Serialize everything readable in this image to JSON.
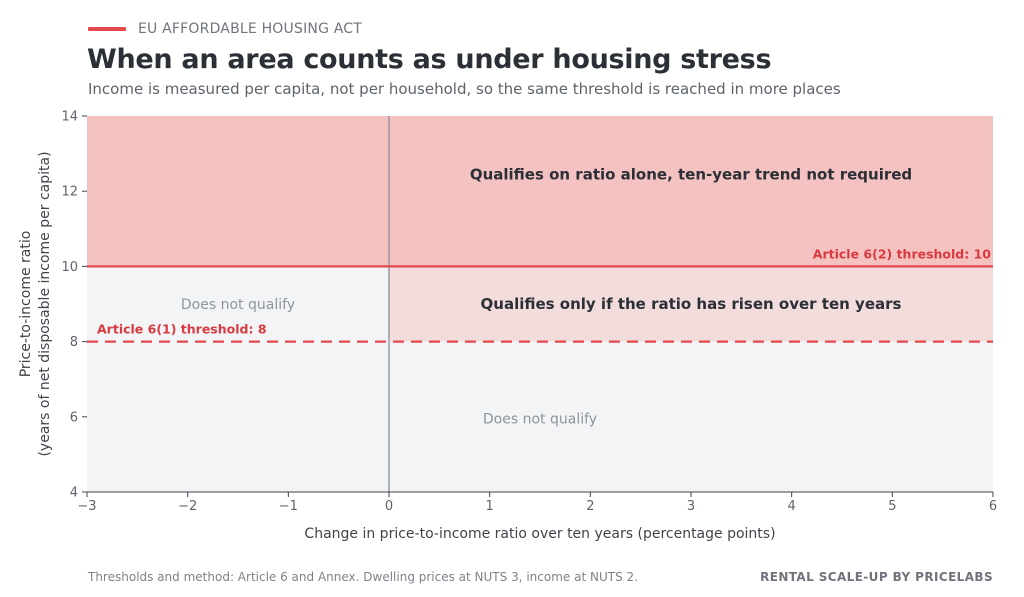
{
  "header": {
    "kicker": "EU AFFORDABLE HOUSING ACT",
    "title": "When an area counts as under housing stress",
    "subtitle": "Income is measured per capita, not per household, so the same threshold is reached in more places"
  },
  "footer": {
    "source": "Thresholds and method: Article 6 and Annex. Dwelling prices at NUTS 3, income at NUTS 2.",
    "brand": "RENTAL SCALE-UP  BY PRICELABS"
  },
  "colors": {
    "accent": "#e5484d",
    "region_top": "#f5c2c2",
    "region_mid": "#f3dcdc",
    "region_none": "#f3f4f6",
    "threshold_label": "#d93a3f"
  },
  "chart_data": {
    "type": "area",
    "xlabel": "Change in price-to-income ratio over ten years (percentage points)",
    "ylabel_lines": [
      "Price-to-income ratio",
      "(years of net disposable income per capita)"
    ],
    "xlim": [
      -3,
      6
    ],
    "ylim": [
      4,
      14
    ],
    "x_ticks": [
      -3,
      -2,
      -1,
      0,
      1,
      2,
      3,
      4,
      5,
      6
    ],
    "x_tick_labels": [
      "−3",
      "−2",
      "−1",
      "0",
      "1",
      "2",
      "3",
      "4",
      "5",
      "6"
    ],
    "y_ticks": [
      4,
      6,
      8,
      10,
      12,
      14
    ],
    "y_tick_labels": [
      "4",
      "6",
      "8",
      "10",
      "12",
      "14"
    ],
    "grid": false,
    "vertical_reference": 0,
    "regions": [
      {
        "x": [
          -3,
          6
        ],
        "y": [
          10,
          14
        ],
        "fill": "#f5c2c2",
        "label": "Qualifies on ratio alone, ten-year trend not required",
        "label_at": [
          3.0,
          12.45
        ],
        "style": "strong"
      },
      {
        "x": [
          0,
          6
        ],
        "y": [
          8,
          10
        ],
        "fill": "#f3dcdc",
        "label": "Qualifies only if the ratio has risen over ten years",
        "label_at": [
          3.0,
          9.0
        ],
        "style": "strong"
      },
      {
        "x": [
          -3,
          0
        ],
        "y": [
          8,
          10
        ],
        "fill": "#f3f4f6",
        "label": "Does not qualify",
        "label_at": [
          -1.5,
          9.0
        ],
        "style": "muted"
      },
      {
        "x": [
          -3,
          6
        ],
        "y": [
          4,
          8
        ],
        "fill": "#f3f4f6",
        "label": "Does not qualify",
        "label_at": [
          1.5,
          5.95
        ],
        "style": "muted"
      }
    ],
    "thresholds": [
      {
        "y": 10,
        "style": "solid",
        "label": "Article 6(2) threshold: 10",
        "label_anchor": "end"
      },
      {
        "y": 8,
        "style": "dashed",
        "label": "Article 6(1) threshold: 8",
        "label_anchor": "start"
      }
    ]
  }
}
